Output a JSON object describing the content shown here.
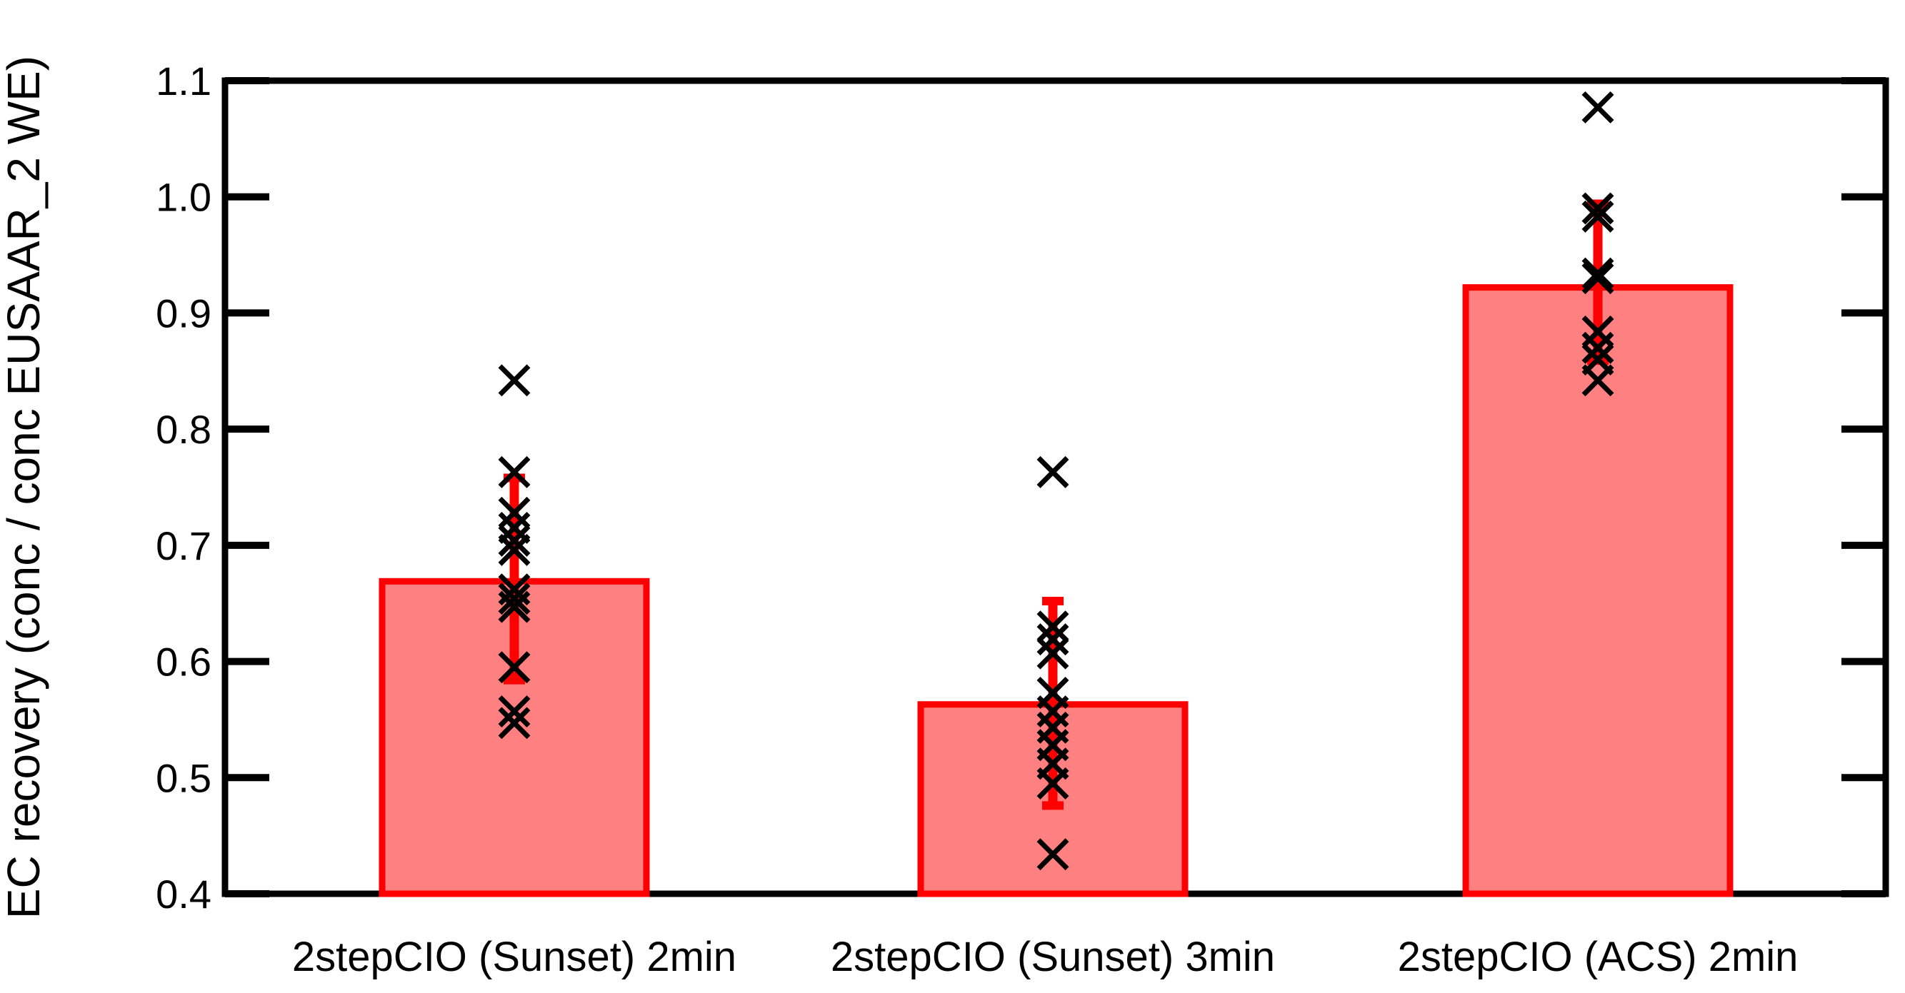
{
  "chart_data": {
    "type": "bar",
    "title": "",
    "xlabel": "",
    "ylabel": "EC recovery (conc / conc EUSAAR_2 WE)",
    "ylim": [
      0.4,
      1.1
    ],
    "yticks": [
      0.4,
      0.5,
      0.6,
      0.7,
      0.8,
      0.9,
      1.0,
      1.1
    ],
    "ytick_labels": [
      "0.4",
      "0.5",
      "0.6",
      "0.7",
      "0.8",
      "0.9",
      "1.0",
      "1.1"
    ],
    "grid": false,
    "legend_position": "none",
    "categories": [
      "2stepCIO (Sunset) 2min",
      "2stepCIO (Sunset) 3min",
      "2stepCIO (ACS) 2min"
    ],
    "series": [
      {
        "name": "EC recovery",
        "values": [
          0.669,
          0.563,
          0.922
        ]
      }
    ],
    "error_bars": [
      {
        "low": 0.584,
        "high": 0.758
      },
      {
        "low": 0.476,
        "high": 0.652
      },
      {
        "low": 0.859,
        "high": 0.994
      }
    ],
    "scatter_points": [
      [
        0.842,
        0.763,
        0.728,
        0.715,
        0.704,
        0.696,
        0.662,
        0.654,
        0.647,
        0.595,
        0.557,
        0.547
      ],
      [
        0.763,
        0.63,
        0.619,
        0.607,
        0.573,
        0.557,
        0.543,
        0.528,
        0.512,
        0.495,
        0.434
      ],
      [
        1.077,
        0.99,
        0.983,
        0.934,
        0.93,
        0.884,
        0.87,
        0.86,
        0.842
      ]
    ],
    "marker_style": "x",
    "colors": {
      "bar_fill": "#FF8080",
      "bar_border": "#FF0000",
      "error_bar": "#FF0000",
      "marker": "#000000",
      "axis": "#000000",
      "background": "#FFFFFF"
    }
  }
}
